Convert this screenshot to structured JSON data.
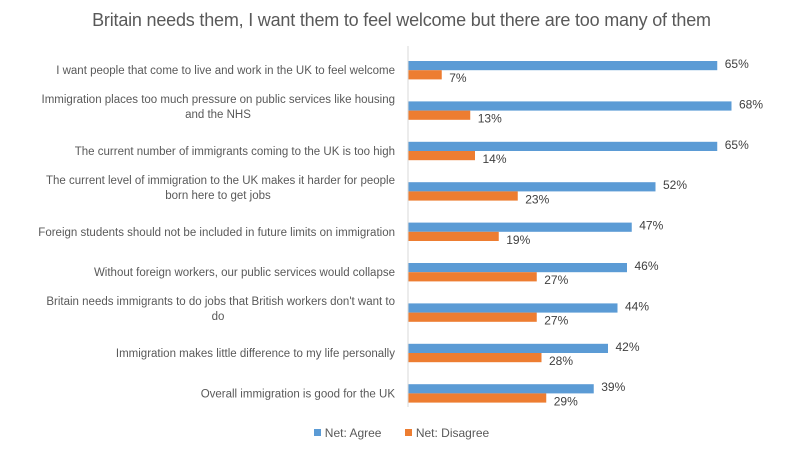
{
  "chart_data": {
    "type": "bar",
    "orientation": "horizontal",
    "title": "Britain needs them, I want them to feel welcome but there are too many of them",
    "xlabel": "",
    "ylabel": "",
    "xlim": [
      0,
      80
    ],
    "grid": false,
    "legend_position": "bottom",
    "categories": [
      [
        "I want people that come to live and work in the UK to feel welcome"
      ],
      [
        "Immigration places too much pressure on public services like housing",
        "and the NHS"
      ],
      [
        "The current number of immigrants coming to the UK is too high"
      ],
      [
        "The current level of immigration to the UK makes it harder for people",
        "born here to get jobs"
      ],
      [
        "Foreign students should not be included in future limits on immigration"
      ],
      [
        "Without foreign workers, our public services would collapse"
      ],
      [
        "Britain needs immigrants to do jobs that British workers don't want to",
        "do"
      ],
      [
        "Immigration makes little difference to my life personally"
      ],
      [
        "Overall immigration is good for the UK"
      ]
    ],
    "series": [
      {
        "name": "Net: Agree",
        "color": "#5B9BD5",
        "values": [
          65,
          68,
          65,
          52,
          47,
          46,
          44,
          42,
          39
        ]
      },
      {
        "name": "Net: Disagree",
        "color": "#ED7D31",
        "values": [
          7,
          13,
          14,
          23,
          19,
          27,
          27,
          28,
          29
        ]
      }
    ],
    "value_suffix": "%"
  }
}
